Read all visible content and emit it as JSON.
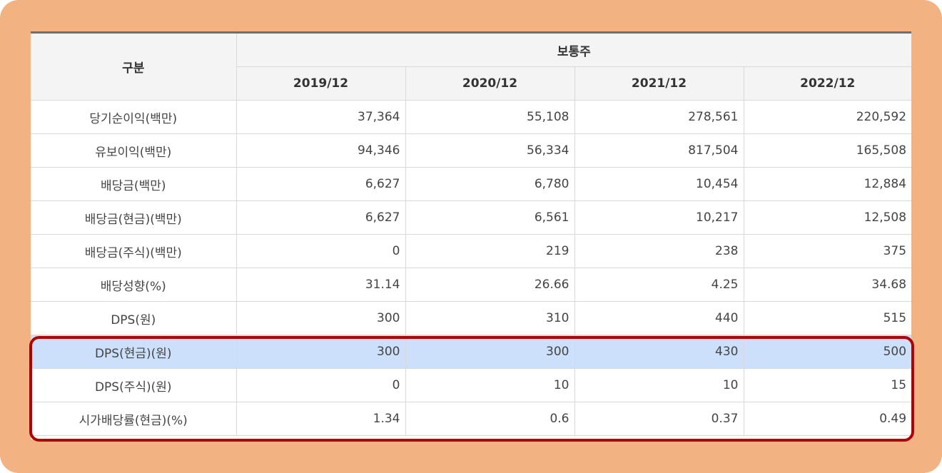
{
  "table": {
    "header": {
      "category": "구분",
      "group": "보통주",
      "years": [
        "2019/12",
        "2020/12",
        "2021/12",
        "2022/12"
      ]
    },
    "rows": [
      {
        "label": "당기순이익(백만)",
        "values": [
          "37,364",
          "55,108",
          "278,561",
          "220,592"
        ]
      },
      {
        "label": "유보이익(백만)",
        "values": [
          "94,346",
          "56,334",
          "817,504",
          "165,508"
        ]
      },
      {
        "label": "배당금(백만)",
        "values": [
          "6,627",
          "6,780",
          "10,454",
          "12,884"
        ]
      },
      {
        "label": "배당금(현금)(백만)",
        "values": [
          "6,627",
          "6,561",
          "10,217",
          "12,508"
        ]
      },
      {
        "label": "배당금(주식)(백만)",
        "values": [
          "0",
          "219",
          "238",
          "375"
        ]
      },
      {
        "label": "배당성향(%)",
        "values": [
          "31.14",
          "26.66",
          "4.25",
          "34.68"
        ]
      },
      {
        "label": "DPS(원)",
        "values": [
          "300",
          "310",
          "440",
          "515"
        ]
      },
      {
        "label": "DPS(현금)(원)",
        "values": [
          "300",
          "300",
          "430",
          "500"
        ]
      },
      {
        "label": "DPS(주식)(원)",
        "values": [
          "0",
          "10",
          "10",
          "15"
        ]
      },
      {
        "label": "시가배당률(현금)(%)",
        "values": [
          "1.34",
          "0.6",
          "0.37",
          "0.49"
        ]
      }
    ],
    "highlighted_row_index": 7
  },
  "colors": {
    "frame": "#f2b282",
    "highlight_row": "#cce0fb",
    "highlight_box": "#b10000",
    "header_bg": "#f4f4f4"
  }
}
